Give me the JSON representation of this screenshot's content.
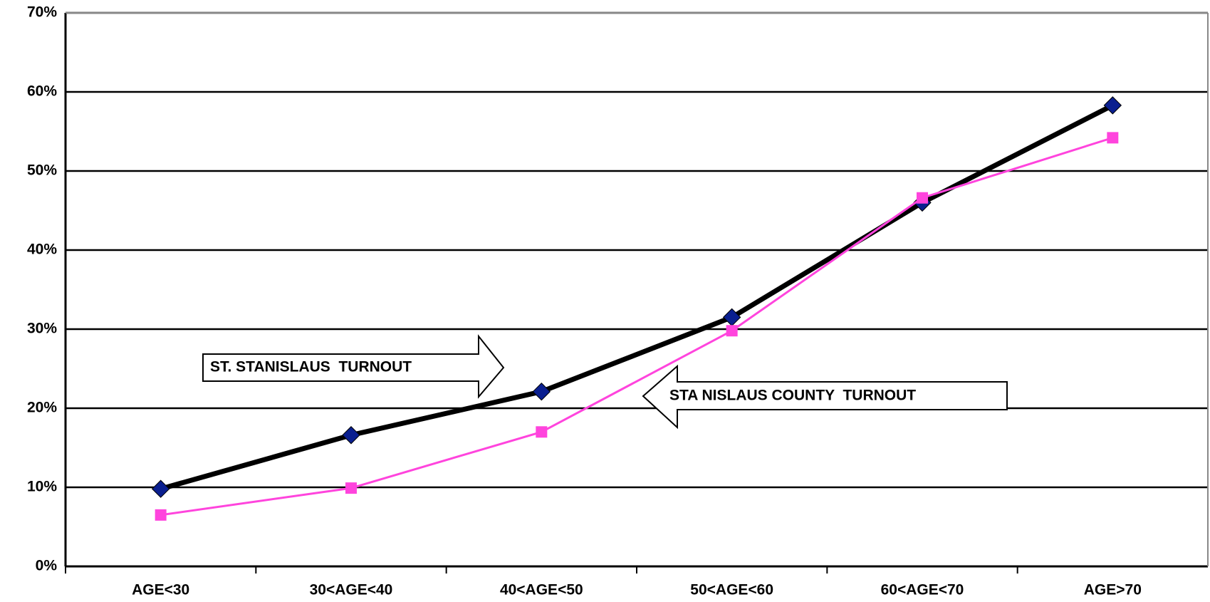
{
  "chart_data": {
    "type": "line",
    "categories": [
      "AGE<30",
      "30<AGE<40",
      "40<AGE<50",
      "50<AGE<60",
      "60<AGE<70",
      "AGE>70"
    ],
    "series": [
      {
        "name": "ST. STANISLAUS  TURNOUT",
        "color": "#000000",
        "marker": "diamond",
        "marker_color": "#0a1f8f",
        "values": [
          9.8,
          16.6,
          22.1,
          31.5,
          46,
          58.3
        ]
      },
      {
        "name": "STA NISLAUS COUNTY  TURNOUT",
        "color": "#ff44dd",
        "marker": "square",
        "marker_color": "#ff44dd",
        "values": [
          6.5,
          9.9,
          17,
          29.8,
          46.6,
          54.2
        ]
      }
    ],
    "ylim": [
      0,
      70
    ],
    "yticks": [
      {
        "value": 0,
        "label": "0%"
      },
      {
        "value": 10,
        "label": "10%"
      },
      {
        "value": 20,
        "label": "20%"
      },
      {
        "value": 30,
        "label": "30%"
      },
      {
        "value": 40,
        "label": "40%"
      },
      {
        "value": 50,
        "label": "50%"
      },
      {
        "value": 60,
        "label": "60%"
      },
      {
        "value": 70,
        "label": "70%"
      }
    ],
    "grid": true
  }
}
